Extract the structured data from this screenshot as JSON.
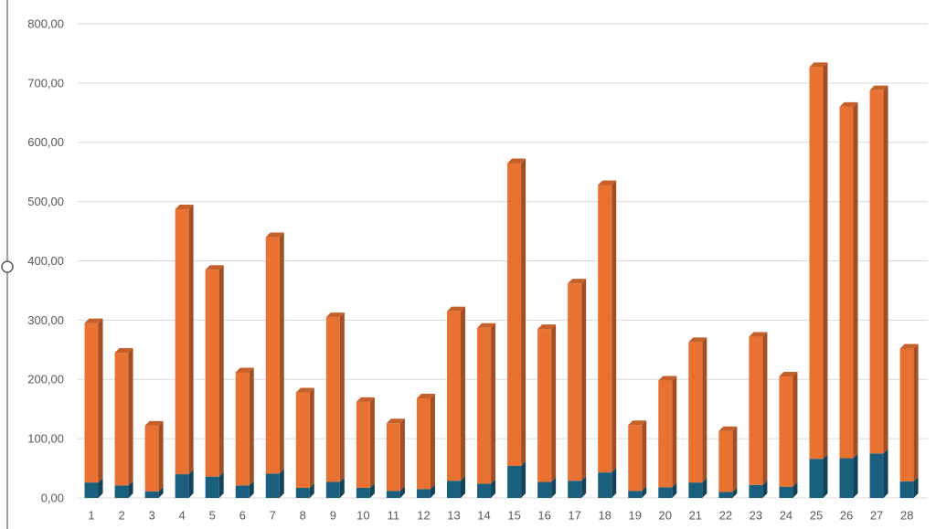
{
  "chart_data": {
    "type": "bar",
    "stacked": true,
    "categories": [
      "1",
      "2",
      "3",
      "4",
      "5",
      "6",
      "7",
      "8",
      "9",
      "10",
      "11",
      "12",
      "13",
      "14",
      "15",
      "16",
      "17",
      "18",
      "19",
      "20",
      "21",
      "22",
      "23",
      "24",
      "25",
      "26",
      "27",
      "28"
    ],
    "series": [
      {
        "color": "#1b5f7e",
        "values": [
          26,
          21,
          11,
          40,
          36,
          21,
          41,
          17,
          27,
          17,
          12,
          15,
          29,
          24,
          54,
          27,
          29,
          43,
          12,
          18,
          26,
          10,
          22,
          19,
          66,
          67,
          75,
          28
        ]
      },
      {
        "color": "#e97132",
        "values": [
          269,
          224,
          111,
          447,
          349,
          191,
          399,
          161,
          278,
          145,
          114,
          153,
          286,
          263,
          511,
          258,
          333,
          485,
          111,
          180,
          237,
          103,
          250,
          186,
          661,
          593,
          613,
          224
        ]
      }
    ],
    "ylim": [
      0,
      800
    ],
    "yticks": [
      {
        "value": 0,
        "label": "0,00"
      },
      {
        "value": 100,
        "label": "100,00"
      },
      {
        "value": 200,
        "label": "200,00"
      },
      {
        "value": 300,
        "label": "300,00"
      },
      {
        "value": 400,
        "label": "400,00"
      },
      {
        "value": 500,
        "label": "500,00"
      },
      {
        "value": 600,
        "label": "600,00"
      },
      {
        "value": 700,
        "label": "700,00"
      },
      {
        "value": 800,
        "label": "800,00"
      }
    ],
    "grid": true
  }
}
